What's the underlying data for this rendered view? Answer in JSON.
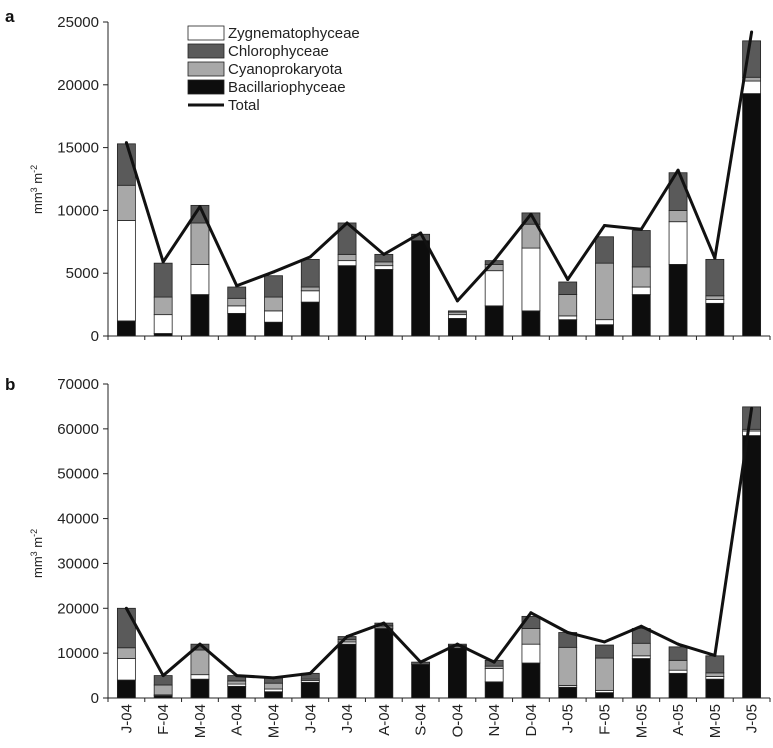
{
  "chart_data": [
    {
      "panel": "a",
      "type": "bar",
      "stacked": true,
      "ylabel": "mm3 m-2",
      "ylim": [
        0,
        25000
      ],
      "yticks": [
        0,
        5000,
        10000,
        15000,
        20000,
        25000
      ],
      "categories": [
        "J-04",
        "F-04",
        "M-04",
        "A-04",
        "M-04",
        "J-04",
        "J-04",
        "A-04",
        "S-04",
        "O-04",
        "N-04",
        "D-04",
        "J-05",
        "F-05",
        "M-05",
        "A-05",
        "M-05",
        "J-05"
      ],
      "series": [
        {
          "name": "Bacillariophyceae",
          "color": "#0d0d0d",
          "values": [
            1200,
            200,
            3300,
            1800,
            1100,
            2700,
            5600,
            5300,
            7600,
            1400,
            2400,
            2000,
            1300,
            900,
            3300,
            5700,
            2600,
            19300
          ]
        },
        {
          "name": "Zygnematophyceae",
          "color": "#ffffff",
          "values": [
            8000,
            1500,
            2400,
            600,
            900,
            900,
            400,
            300,
            0,
            300,
            2800,
            5000,
            300,
            400,
            600,
            3400,
            300,
            1000
          ]
        },
        {
          "name": "Cyanoprokaryota",
          "color": "#a8a8a8",
          "values": [
            2800,
            1400,
            3300,
            600,
            1100,
            300,
            500,
            300,
            0,
            200,
            500,
            1900,
            1700,
            4500,
            1600,
            900,
            300,
            300
          ]
        },
        {
          "name": "Chlorophyceae",
          "color": "#5a5a5a",
          "values": [
            3300,
            2700,
            1400,
            900,
            1700,
            2200,
            2500,
            600,
            500,
            100,
            300,
            900,
            1000,
            2100,
            2900,
            3000,
            2900,
            2900
          ]
        }
      ],
      "total": [
        15400,
        5900,
        10300,
        4000,
        5100,
        6300,
        9000,
        6500,
        8200,
        2800,
        6000,
        9700,
        4500,
        8800,
        8500,
        13200,
        6200,
        24200
      ],
      "legend": [
        "Zygnematophyceae",
        "Chlorophyceae",
        "Cyanoprokaryota",
        "Bacillariophyceae",
        "Total"
      ],
      "legend_placement": "top-center",
      "total_color": "#111111"
    },
    {
      "panel": "b",
      "type": "bar",
      "stacked": true,
      "ylabel": "mm3 m-2",
      "ylim": [
        0,
        70000
      ],
      "yticks": [
        0,
        10000,
        20000,
        30000,
        40000,
        50000,
        60000,
        70000
      ],
      "categories": [
        "J-04",
        "F-04",
        "M-04",
        "A-04",
        "M-04",
        "J-04",
        "J-04",
        "A-04",
        "S-04",
        "O-04",
        "N-04",
        "D-04",
        "J-05",
        "F-05",
        "M-05",
        "A-05",
        "M-05",
        "J-05"
      ],
      "series": [
        {
          "name": "Bacillariophyceae",
          "color": "#0d0d0d",
          "values": [
            4000,
            500,
            4200,
            2600,
            1400,
            3500,
            12000,
            15500,
            7500,
            11200,
            3600,
            7800,
            2400,
            1200,
            8800,
            5500,
            4200,
            58500
          ]
        },
        {
          "name": "Zygnematophyceae",
          "color": "#ffffff",
          "values": [
            4800,
            200,
            1000,
            500,
            600,
            400,
            500,
            300,
            0,
            300,
            3000,
            4200,
            400,
            500,
            600,
            700,
            600,
            1000
          ]
        },
        {
          "name": "Cyanoprokaryota",
          "color": "#a8a8a8",
          "values": [
            2400,
            2200,
            5500,
            700,
            1300,
            300,
            500,
            300,
            0,
            200,
            500,
            3500,
            8500,
            7200,
            2800,
            2200,
            800,
            400
          ]
        },
        {
          "name": "Chlorophyceae",
          "color": "#5a5a5a",
          "values": [
            8800,
            2100,
            1300,
            1200,
            1200,
            1300,
            700,
            600,
            500,
            300,
            1300,
            2700,
            3300,
            2900,
            3300,
            3000,
            3800,
            5000
          ]
        }
      ],
      "total": [
        20000,
        5000,
        12000,
        5000,
        4500,
        5500,
        13700,
        16700,
        8000,
        12000,
        8000,
        19000,
        14600,
        12500,
        16000,
        12000,
        9500,
        64600
      ],
      "total_color": "#111111"
    }
  ],
  "ui": {
    "panel_a_label": "a",
    "panel_b_label": "b",
    "ylabel_main": "mm",
    "ylabel_sup1": "3",
    "ylabel_mid": " m",
    "ylabel_sup2": "-2"
  }
}
